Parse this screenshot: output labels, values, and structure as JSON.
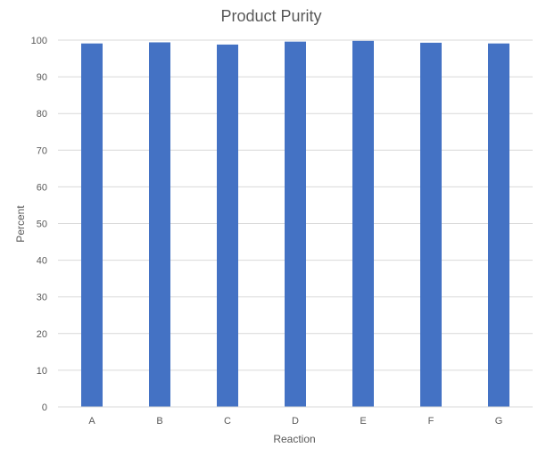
{
  "chart_data": {
    "type": "bar",
    "title": "Product Purity",
    "xlabel": "Reaction",
    "ylabel": "Percent",
    "categories": [
      "A",
      "B",
      "C",
      "D",
      "E",
      "F",
      "G"
    ],
    "values": [
      99.1,
      99.4,
      98.8,
      99.6,
      99.8,
      99.3,
      99.1
    ],
    "ylim": [
      0,
      100
    ],
    "yticks": [
      0,
      10,
      20,
      30,
      40,
      50,
      60,
      70,
      80,
      90,
      100
    ],
    "grid": true,
    "legend": "none",
    "bar_color": "#4472C4"
  }
}
